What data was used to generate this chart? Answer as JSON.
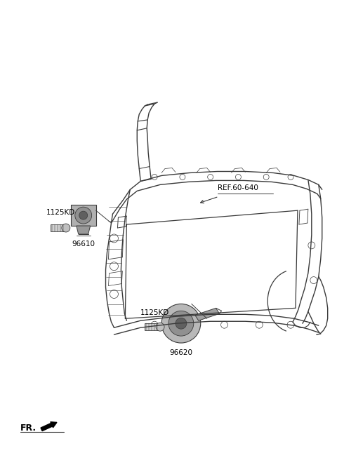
{
  "background_color": "#ffffff",
  "fig_width": 4.8,
  "fig_height": 6.56,
  "dpi": 100,
  "labels": {
    "ref_label": "REF.60-640",
    "part1_label": "1125KD",
    "part1_num": "96610",
    "part2_label": "1125KD",
    "part2_num": "96620",
    "fr_label": "FR."
  },
  "line_color": "#3a3a3a",
  "gray_color": "#888888",
  "dark_gray": "#555555",
  "light_gray": "#cccccc"
}
